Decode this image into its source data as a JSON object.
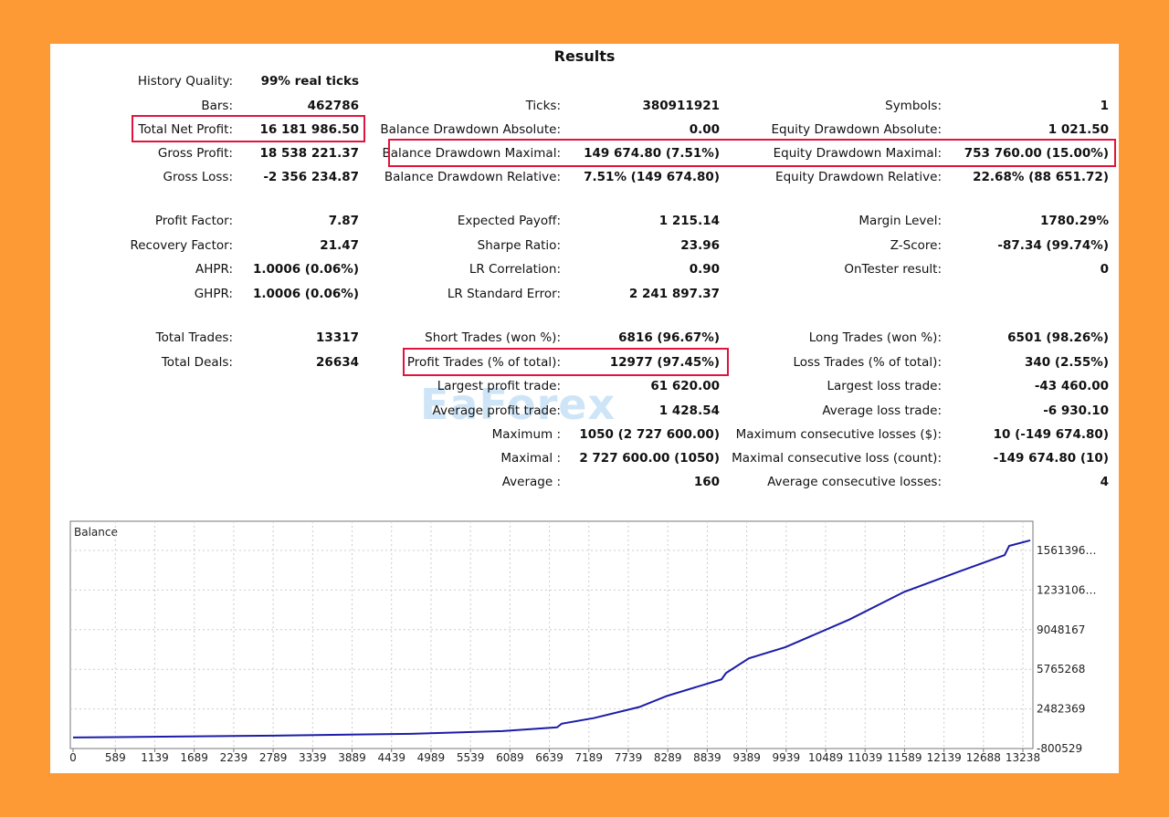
{
  "title": "Results",
  "watermark": "EaForex",
  "rows": [
    [
      [
        "History Quality:",
        "99% real ticks"
      ],
      null,
      null
    ],
    [
      [
        "Bars:",
        "462786"
      ],
      [
        "Ticks:",
        "380911921"
      ],
      [
        "Symbols:",
        "1"
      ]
    ],
    [
      [
        "Total Net Profit:",
        "16 181 986.50"
      ],
      [
        "Balance Drawdown Absolute:",
        "0.00"
      ],
      [
        "Equity Drawdown Absolute:",
        "1 021.50"
      ]
    ],
    [
      [
        "Gross Profit:",
        "18 538 221.37"
      ],
      [
        "Balance Drawdown Maximal:",
        "149 674.80 (7.51%)"
      ],
      [
        "Equity Drawdown Maximal:",
        "753 760.00 (15.00%)"
      ]
    ],
    [
      [
        "Gross Loss:",
        "-2 356 234.87"
      ],
      [
        "Balance Drawdown Relative:",
        "7.51% (149 674.80)"
      ],
      [
        "Equity Drawdown Relative:",
        "22.68% (88 651.72)"
      ]
    ],
    [
      [
        "Profit Factor:",
        "7.87"
      ],
      [
        "Expected Payoff:",
        "1 215.14"
      ],
      [
        "Margin Level:",
        "1780.29%"
      ]
    ],
    [
      [
        "Recovery Factor:",
        "21.47"
      ],
      [
        "Sharpe Ratio:",
        "23.96"
      ],
      [
        "Z-Score:",
        "-87.34 (99.74%)"
      ]
    ],
    [
      [
        "AHPR:",
        "1.0006 (0.06%)"
      ],
      [
        "LR Correlation:",
        "0.90"
      ],
      [
        "OnTester result:",
        "0"
      ]
    ],
    [
      [
        "GHPR:",
        "1.0006 (0.06%)"
      ],
      [
        "LR Standard Error:",
        "2 241 897.37"
      ],
      null
    ],
    [
      [
        "Total Trades:",
        "13317"
      ],
      [
        "Short Trades (won %):",
        "6816 (96.67%)"
      ],
      [
        "Long Trades (won %):",
        "6501 (98.26%)"
      ]
    ],
    [
      [
        "Total Deals:",
        "26634"
      ],
      [
        "Profit Trades (% of total):",
        "12977 (97.45%)"
      ],
      [
        "Loss Trades (% of total):",
        "340 (2.55%)"
      ]
    ],
    [
      null,
      [
        "Largest profit trade:",
        "61 620.00"
      ],
      [
        "Largest loss trade:",
        "-43 460.00"
      ]
    ],
    [
      null,
      [
        "Average profit trade:",
        "1 428.54"
      ],
      [
        "Average loss trade:",
        "-6 930.10"
      ]
    ],
    [
      null,
      [
        "Maximum :",
        "1050 (2 727 600.00)"
      ],
      [
        "Maximum consecutive losses ($):",
        "10 (-149 674.80)"
      ]
    ],
    [
      null,
      [
        "Maximal :",
        "2 727 600.00 (1050)"
      ],
      [
        "Maximal consecutive loss (count):",
        "-149 674.80 (10)"
      ]
    ],
    [
      null,
      [
        "Average :",
        "160"
      ],
      [
        "Average consecutive losses:",
        "4"
      ]
    ]
  ],
  "chart_data": {
    "type": "line",
    "title": "Balance",
    "xlabel": "",
    "ylabel": "",
    "xlim": [
      0,
      13600
    ],
    "ylim": [
      -800529,
      16500000
    ],
    "x_ticks": [
      "0",
      "589",
      "1139",
      "1689",
      "2239",
      "2789",
      "3339",
      "3889",
      "4439",
      "4989",
      "5539",
      "6089",
      "6639",
      "7189",
      "7739",
      "8289",
      "8839",
      "9389",
      "9939",
      "10489",
      "11039",
      "11589",
      "12139",
      "12688",
      "13238"
    ],
    "y_ticks": [
      "-800529",
      "2482369",
      "5765268",
      "9048167",
      "12331065",
      "15613964"
    ],
    "y_tick_labels": [
      "-800529",
      "2482369",
      "5765268",
      "9048167",
      "1233106…",
      "1561396…"
    ],
    "grid": true,
    "color": "#1C1CA8",
    "series": [
      {
        "name": "Balance",
        "x": [
          0,
          2800,
          4710,
          5983,
          6746,
          6810,
          7256,
          7892,
          8274,
          9038,
          9101,
          9420,
          9929,
          10820,
          11584,
          12347,
          12984,
          13047,
          13340
        ],
        "y": [
          116000,
          268000,
          421000,
          650000,
          955000,
          1260000,
          1720000,
          2640000,
          3550000,
          4930000,
          5460000,
          6680000,
          7600000,
          9890000,
          12180000,
          13860000,
          15230000,
          15990000,
          16450000
        ]
      }
    ]
  }
}
